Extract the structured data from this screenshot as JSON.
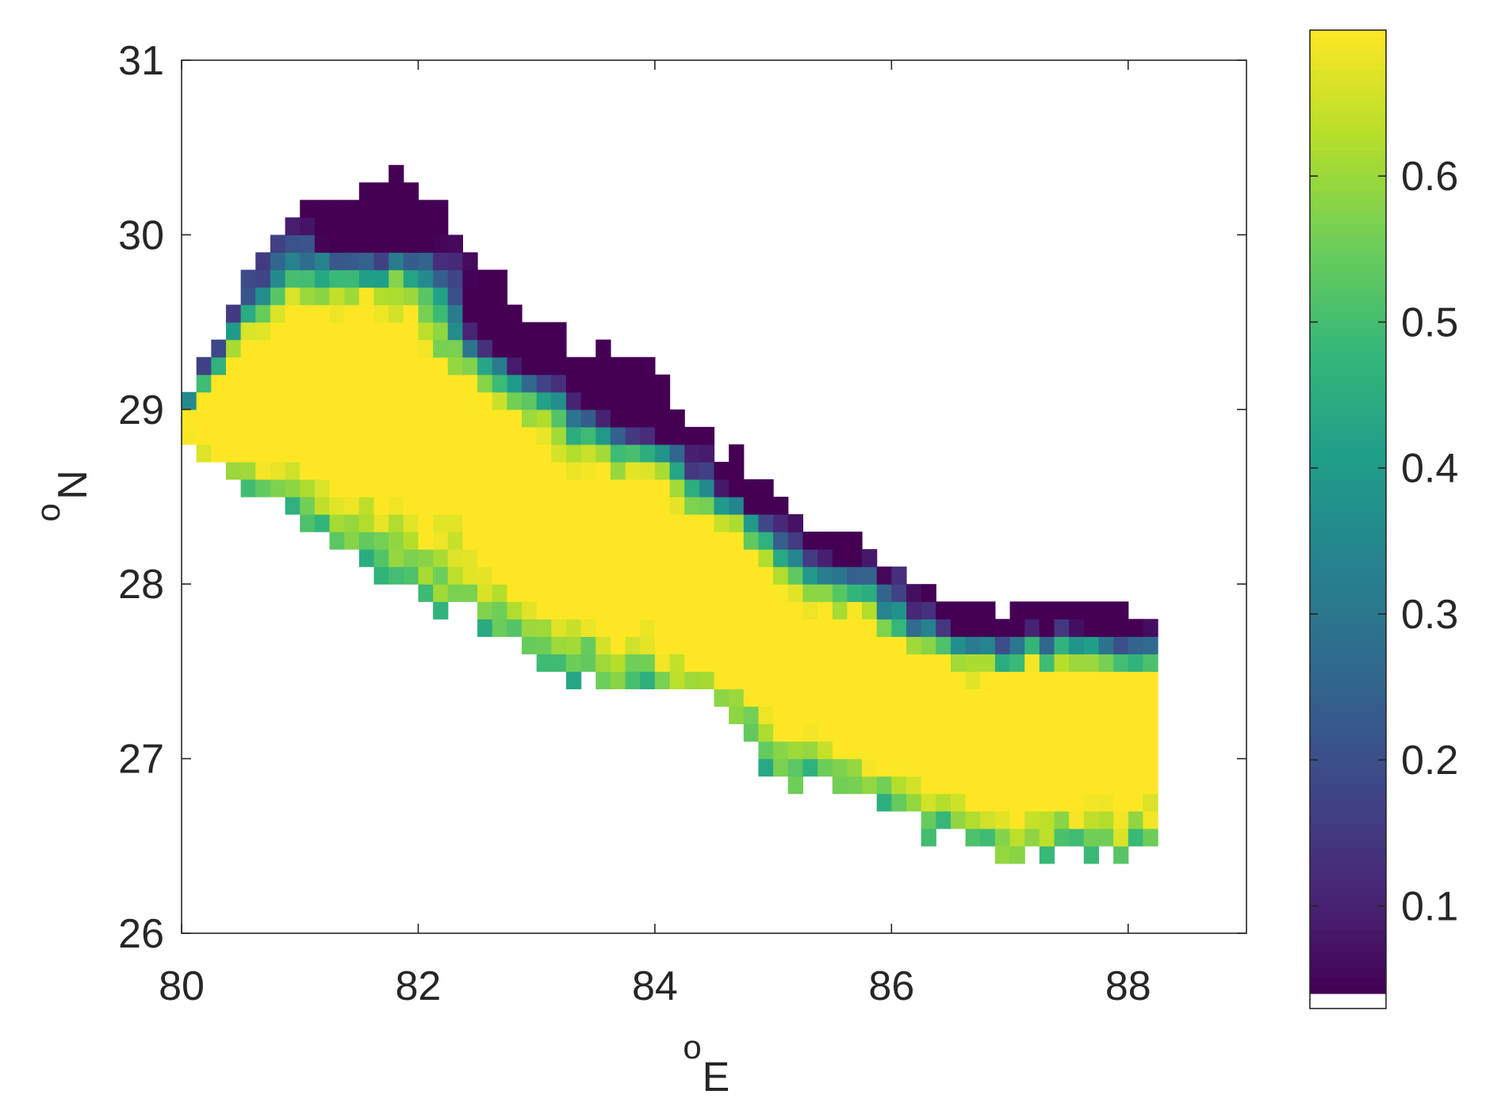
{
  "chart_data": {
    "type": "heatmap",
    "title": "",
    "xlabel_super": "o",
    "xlabel_main": "E",
    "ylabel_super": "o",
    "ylabel_main": "N",
    "xlim": [
      80,
      89
    ],
    "ylim": [
      26,
      31
    ],
    "xticks": [
      80,
      82,
      84,
      86,
      88
    ],
    "xtick_labels": [
      "80",
      "82",
      "84",
      "86",
      "88"
    ],
    "yticks": [
      26,
      27,
      28,
      29,
      30,
      31
    ],
    "ytick_labels": [
      "26",
      "27",
      "28",
      "29",
      "30",
      "31"
    ],
    "grid": false,
    "colormap": "viridis",
    "colorbar": {
      "range": [
        0.04,
        0.7
      ],
      "ticks": [
        0.1,
        0.2,
        0.3,
        0.4,
        0.5,
        0.6
      ],
      "tick_labels": [
        "0.1",
        "0.2",
        "0.3",
        "0.4",
        "0.5",
        "0.6"
      ]
    },
    "region": {
      "north_boundary": [
        [
          80.1,
          29.15
        ],
        [
          80.35,
          29.45
        ],
        [
          80.5,
          29.8
        ],
        [
          80.8,
          30.0
        ],
        [
          81.0,
          30.2
        ],
        [
          81.5,
          30.25
        ],
        [
          81.8,
          30.4
        ],
        [
          82.2,
          30.1
        ],
        [
          82.6,
          29.85
        ],
        [
          83.0,
          29.5
        ],
        [
          83.4,
          29.35
        ],
        [
          83.7,
          29.35
        ],
        [
          84.0,
          29.3
        ],
        [
          84.3,
          28.85
        ],
        [
          84.6,
          28.75
        ],
        [
          85.0,
          28.6
        ],
        [
          85.3,
          28.3
        ],
        [
          85.7,
          28.25
        ],
        [
          86.0,
          28.05
        ],
        [
          86.3,
          28.0
        ],
        [
          86.6,
          27.85
        ],
        [
          87.0,
          27.85
        ],
        [
          87.3,
          27.9
        ],
        [
          87.7,
          27.9
        ],
        [
          88.1,
          27.85
        ]
      ],
      "south_boundary": [
        [
          80.1,
          28.75
        ],
        [
          80.5,
          28.6
        ],
        [
          81.0,
          28.35
        ],
        [
          81.5,
          28.1
        ],
        [
          82.0,
          27.95
        ],
        [
          82.5,
          27.8
        ],
        [
          83.0,
          27.55
        ],
        [
          83.5,
          27.45
        ],
        [
          84.0,
          27.4
        ],
        [
          84.4,
          27.4
        ],
        [
          84.7,
          27.15
        ],
        [
          85.0,
          26.9
        ],
        [
          85.5,
          26.85
        ],
        [
          86.0,
          26.65
        ],
        [
          86.5,
          26.55
        ],
        [
          87.0,
          26.4
        ],
        [
          87.5,
          26.45
        ],
        [
          88.1,
          26.45
        ]
      ],
      "high_zones": [
        {
          "x": 80.8,
          "y": 28.95,
          "sx": 0.65,
          "sy": 0.28,
          "amp": 0.4
        },
        {
          "x": 83.4,
          "y": 28.05,
          "sx": 0.9,
          "sy": 0.22,
          "amp": 0.35
        },
        {
          "x": 84.8,
          "y": 27.6,
          "sx": 0.8,
          "sy": 0.2,
          "amp": 0.3
        },
        {
          "x": 87.5,
          "y": 27.2,
          "sx": 0.6,
          "sy": 0.35,
          "amp": 0.4
        },
        {
          "x": 86.6,
          "y": 27.0,
          "sx": 0.5,
          "sy": 0.2,
          "amp": 0.25
        }
      ],
      "low_zones": [
        {
          "x": 81.7,
          "y": 30.1,
          "sx": 0.5,
          "sy": 0.25,
          "amp": 0.65
        },
        {
          "x": 82.9,
          "y": 29.5,
          "sx": 0.55,
          "sy": 0.3,
          "amp": 0.75
        },
        {
          "x": 83.9,
          "y": 29.05,
          "sx": 0.5,
          "sy": 0.28,
          "amp": 0.75
        },
        {
          "x": 84.9,
          "y": 28.6,
          "sx": 0.35,
          "sy": 0.18,
          "amp": 0.45
        },
        {
          "x": 85.6,
          "y": 28.25,
          "sx": 0.25,
          "sy": 0.12,
          "amp": 0.45
        },
        {
          "x": 86.9,
          "y": 27.85,
          "sx": 0.5,
          "sy": 0.12,
          "amp": 0.55
        },
        {
          "x": 87.9,
          "y": 27.85,
          "sx": 0.3,
          "sy": 0.15,
          "amp": 0.6
        }
      ]
    }
  }
}
